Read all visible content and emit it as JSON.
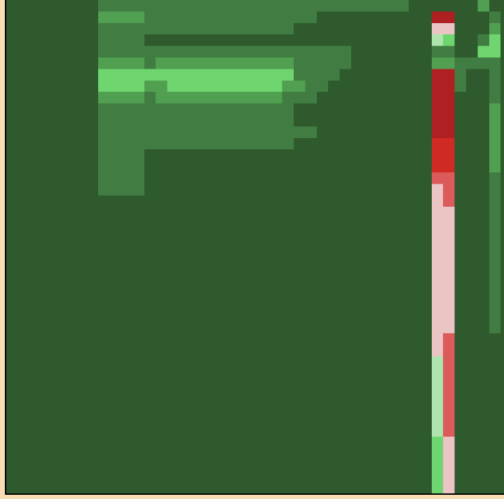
{
  "chart_data": {
    "type": "heatmap",
    "rows": 43,
    "cols": 35,
    "palette": {
      "dark_green": "#2e5a2e",
      "mid_green": "#417d43",
      "green": "#519f50",
      "light_green": "#6ed56f",
      "pale_green": "#aee5ae",
      "pale_pink": "#ebc4c4",
      "salmon": "#db5b5b",
      "red": "#cf2b24",
      "dark_red": "#ae2022"
    },
    "regions": [
      {
        "level": "mid_green",
        "r0": 0,
        "r1": 16,
        "c0": 8,
        "c1": 29
      },
      {
        "level": "dark_green",
        "r0": 1,
        "r1": 1,
        "c0": 27,
        "c1": 29
      },
      {
        "level": "dark_green",
        "r0": 2,
        "r1": 2,
        "c0": 25,
        "c1": 29
      },
      {
        "level": "dark_green",
        "r0": 3,
        "r1": 3,
        "c0": 12,
        "c1": 29
      },
      {
        "level": "green",
        "r0": 1,
        "r1": 1,
        "c0": 8,
        "c1": 11
      },
      {
        "level": "green",
        "r0": 5,
        "r1": 5,
        "c0": 8,
        "c1": 11
      },
      {
        "level": "green",
        "r0": 5,
        "r1": 5,
        "c0": 13,
        "c1": 24
      },
      {
        "level": "light_green",
        "r0": 6,
        "r1": 7,
        "c0": 8,
        "c1": 24
      },
      {
        "level": "green",
        "r0": 7,
        "r1": 7,
        "c0": 12,
        "c1": 13
      },
      {
        "level": "green",
        "r0": 7,
        "r1": 7,
        "c0": 24,
        "c1": 25
      },
      {
        "level": "green",
        "r0": 8,
        "r1": 8,
        "c0": 8,
        "c1": 11
      },
      {
        "level": "green",
        "r0": 8,
        "r1": 8,
        "c0": 13,
        "c1": 23
      },
      {
        "level": "dark_green",
        "r0": 6,
        "r1": 6,
        "c0": 30,
        "c1": 29
      },
      {
        "level": "dark_green",
        "r0": 6,
        "r1": 6,
        "c0": 30,
        "c1": 29
      },
      {
        "level": "dark_green",
        "r0": 6,
        "r1": 6,
        "c0": 29,
        "c1": 29
      },
      {
        "level": "dark_green",
        "r0": 7,
        "r1": 7,
        "c0": 28,
        "c1": 29
      },
      {
        "level": "dark_green",
        "r0": 8,
        "r1": 8,
        "c0": 27,
        "c1": 29
      },
      {
        "level": "dark_green",
        "r0": 9,
        "r1": 10,
        "c0": 25,
        "c1": 29
      },
      {
        "level": "dark_green",
        "r0": 11,
        "r1": 11,
        "c0": 27,
        "c1": 29
      },
      {
        "level": "dark_green",
        "r0": 12,
        "r1": 12,
        "c0": 25,
        "c1": 29
      },
      {
        "level": "dark_green",
        "r0": 13,
        "r1": 16,
        "c0": 12,
        "c1": 29
      },
      {
        "level": "mid_green",
        "r0": 0,
        "r1": 0,
        "c0": 30,
        "c1": 34
      },
      {
        "level": "green",
        "r0": 0,
        "r1": 0,
        "c0": 41,
        "c1": 41
      },
      {
        "level": "green",
        "r0": 0,
        "r1": 0,
        "c0": 41,
        "c1": 41
      },
      {
        "level": "green",
        "r0": 0,
        "r1": 0,
        "c0": 41,
        "c1": 41
      },
      {
        "level": "dark_green",
        "r0": 1,
        "r1": 4,
        "c0": 39,
        "c1": 42
      },
      {
        "level": "green",
        "r0": 2,
        "r1": 2,
        "c0": 42,
        "c1": 42
      },
      {
        "level": "light_green",
        "r0": 3,
        "r1": 4,
        "c0": 42,
        "c1": 42
      },
      {
        "level": "light_green",
        "r0": 4,
        "r1": 4,
        "c0": 41,
        "c1": 41
      },
      {
        "level": "mid_green",
        "r0": 3,
        "r1": 3,
        "c0": 41,
        "c1": 41
      },
      {
        "level": "mid_green",
        "r0": 1,
        "r1": 1,
        "c0": 42,
        "c1": 42
      },
      {
        "level": "mid_green",
        "r0": 5,
        "r1": 5,
        "c0": 39,
        "c1": 42
      },
      {
        "level": "mid_green",
        "r0": 6,
        "r1": 7,
        "c0": 39,
        "c1": 39
      },
      {
        "level": "mid_green",
        "r0": 6,
        "r1": 8,
        "c0": 42,
        "c1": 42
      },
      {
        "level": "green",
        "r0": 9,
        "r1": 14,
        "c0": 42,
        "c1": 42
      },
      {
        "level": "mid_green",
        "r0": 15,
        "r1": 28,
        "c0": 42,
        "c1": 42
      },
      {
        "level": "dark_red",
        "r0": 1,
        "r1": 1,
        "c0": 37,
        "c1": 38
      },
      {
        "level": "pale_pink",
        "r0": 2,
        "r1": 2,
        "c0": 37,
        "c1": 38
      },
      {
        "level": "pale_green",
        "r0": 3,
        "r1": 3,
        "c0": 37,
        "c1": 37
      },
      {
        "level": "light_green",
        "r0": 3,
        "r1": 3,
        "c0": 38,
        "c1": 38
      },
      {
        "level": "mid_green",
        "r0": 4,
        "r1": 4,
        "c0": 37,
        "c1": 38
      },
      {
        "level": "green",
        "r0": 5,
        "r1": 5,
        "c0": 37,
        "c1": 38
      },
      {
        "level": "dark_red",
        "r0": 6,
        "r1": 11,
        "c0": 37,
        "c1": 38
      },
      {
        "level": "red",
        "r0": 12,
        "r1": 14,
        "c0": 37,
        "c1": 38
      },
      {
        "level": "salmon",
        "r0": 15,
        "r1": 15,
        "c0": 37,
        "c1": 38
      },
      {
        "level": "pale_pink",
        "r0": 16,
        "r1": 17,
        "c0": 37,
        "c1": 37
      },
      {
        "level": "salmon",
        "r0": 16,
        "r1": 17,
        "c0": 38,
        "c1": 38
      },
      {
        "level": "pale_pink",
        "r0": 18,
        "r1": 28,
        "c0": 37,
        "c1": 38
      },
      {
        "level": "pale_pink",
        "r0": 29,
        "r1": 30,
        "c0": 37,
        "c1": 37
      },
      {
        "level": "salmon",
        "r0": 29,
        "r1": 37,
        "c0": 38,
        "c1": 38
      },
      {
        "level": "pale_green",
        "r0": 31,
        "r1": 37,
        "c0": 37,
        "c1": 37
      },
      {
        "level": "light_green",
        "r0": 38,
        "r1": 42,
        "c0": 37,
        "c1": 37
      },
      {
        "level": "pale_pink",
        "r0": 38,
        "r1": 42,
        "c0": 38,
        "c1": 38
      }
    ]
  }
}
